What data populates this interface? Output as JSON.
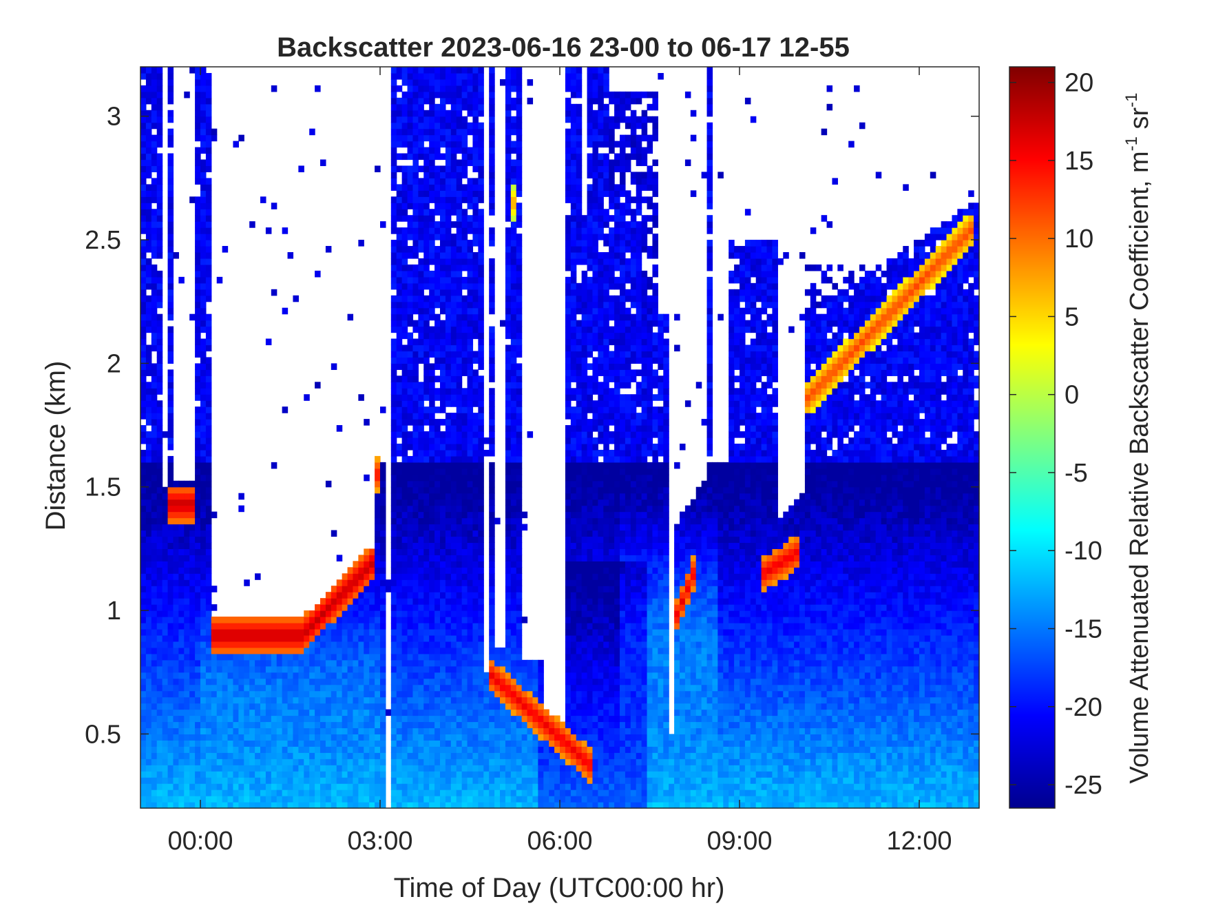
{
  "chart_data": {
    "type": "heatmap",
    "title": "Backscatter 2023-06-16 23-00 to 06-17 12-55",
    "xlabel": "Time of Day (UTC00:00 hr)",
    "ylabel": "Distance (km)",
    "xlim": [
      -1.0,
      13.0
    ],
    "ylim": [
      0.2,
      3.2
    ],
    "x_ticks": [
      {
        "value": 0,
        "label": "00:00"
      },
      {
        "value": 3,
        "label": "03:00"
      },
      {
        "value": 6,
        "label": "06:00"
      },
      {
        "value": 9,
        "label": "09:00"
      },
      {
        "value": 12,
        "label": "12:00"
      }
    ],
    "y_ticks": [
      {
        "value": 0.5,
        "label": "0.5"
      },
      {
        "value": 1,
        "label": "1"
      },
      {
        "value": 1.5,
        "label": "1.5"
      },
      {
        "value": 2,
        "label": "2"
      },
      {
        "value": 2.5,
        "label": "2.5"
      },
      {
        "value": 3,
        "label": "3"
      }
    ],
    "colorbar": {
      "label": "Volume Attenuated Relative Backscatter Coefficient, m",
      "label_unit_sr": " sr",
      "superscript": "-1",
      "range": [
        -26.5,
        21
      ],
      "colormap": "jet",
      "ticks": [
        {
          "value": 20,
          "label": "20"
        },
        {
          "value": 15,
          "label": "15"
        },
        {
          "value": 10,
          "label": "10"
        },
        {
          "value": 5,
          "label": "5"
        },
        {
          "value": 0,
          "label": "0"
        },
        {
          "value": -5,
          "label": "-5"
        },
        {
          "value": -10,
          "label": "-10"
        },
        {
          "value": -15,
          "label": "-15"
        },
        {
          "value": -20,
          "label": "-20"
        },
        {
          "value": -25,
          "label": "-25"
        }
      ]
    },
    "grid": false,
    "cloud_layers": [
      {
        "t_start": -0.5,
        "t_end": -0.05,
        "height_km": 1.43,
        "peak_value": 18
      },
      {
        "t_start": 0.2,
        "t_end": 2.9,
        "height_km": 0.9,
        "peak_value": 18
      },
      {
        "t_start": 2.9,
        "t_end": 3.0,
        "height_km": 1.55,
        "peak_value": 15
      },
      {
        "t_start": 4.8,
        "t_end": 6.5,
        "height_km": 0.55,
        "peak_value": 16
      },
      {
        "t_start": 5.2,
        "t_end": 5.3,
        "height_km": 2.65,
        "peak_value": 8
      },
      {
        "t_start": 7.9,
        "t_end": 8.3,
        "height_km": 1.05,
        "peak_value": 16
      },
      {
        "t_start": 9.4,
        "t_end": 10.0,
        "height_km": 1.2,
        "peak_value": 16
      },
      {
        "t_start": 10.1,
        "t_end": 12.9,
        "height_km": 2.2,
        "peak_value": 12
      }
    ]
  }
}
